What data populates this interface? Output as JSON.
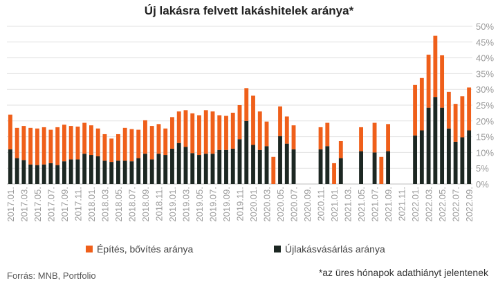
{
  "colors": {
    "epites": "#ef5f1a",
    "ujlakas": "#1c2722",
    "grid": "#e2e2e2",
    "axis_text": "#9a9a9a"
  },
  "chart_data": {
    "type": "bar",
    "stacked": true,
    "title": "Új lakásra felvett lakáshitelek aránya*",
    "y_ticks": [
      "0%",
      "5%",
      "10%",
      "15%",
      "20%",
      "25%",
      "30%",
      "35%",
      "40%",
      "45%",
      "50%"
    ],
    "ylim": [
      0,
      50
    ],
    "grid": true,
    "legend_position": "bottom",
    "categories": [
      "2017.01.",
      "2017.02.",
      "2017.03.",
      "2017.04.",
      "2017.05.",
      "2017.06.",
      "2017.07.",
      "2017.08.",
      "2017.09.",
      "2017.10.",
      "2017.11.",
      "2017.12.",
      "2018.01.",
      "2018.02.",
      "2018.03.",
      "2018.04.",
      "2018.05.",
      "2018.06.",
      "2018.07.",
      "2018.08.",
      "2018.09.",
      "2018.10.",
      "2018.11.",
      "2018.12.",
      "2019.01.",
      "2019.02.",
      "2019.03.",
      "2019.04.",
      "2019.05.",
      "2019.06.",
      "2019.07.",
      "2019.08.",
      "2019.09.",
      "2019.10.",
      "2019.11.",
      "2019.12.",
      "2020.01.",
      "2020.02.",
      "2020.03.",
      "2020.04.",
      "2020.05.",
      "2020.06.",
      "2020.07.",
      "2020.08.",
      "2020.09.",
      "2020.10.",
      "2020.11.",
      "2020.12.",
      "2021.01.",
      "2021.02.",
      "2021.03.",
      "2021.04.",
      "2021.05.",
      "2021.06.",
      "2021.07.",
      "2021.08.",
      "2021.09.",
      "2021.10.",
      "2021.11.",
      "2021.12.",
      "2022.01.",
      "2022.02.",
      "2022.03.",
      "2022.04.",
      "2022.05.",
      "2022.06.",
      "2022.07.",
      "2022.08.",
      "2022.09."
    ],
    "x_tick_labels": [
      "2017.01.",
      "2017.03.",
      "2017.05.",
      "2017.07.",
      "2017.09.",
      "2017.11.",
      "2018.01.",
      "2018.03.",
      "2018.05.",
      "2018.07.",
      "2018.09.",
      "2018.11.",
      "2019.01.",
      "2019.03.",
      "2019.05.",
      "2019.07.",
      "2019.09.",
      "2019.11.",
      "2020.01.",
      "2020.03.",
      "2020.05.",
      "2020.07.",
      "2020.09.",
      "2020.11.",
      "2021.01.",
      "2021.03.",
      "2021.05.",
      "2021.07.",
      "2021.09.",
      "2021.11.",
      "2022.01.",
      "2022.03.",
      "2022.05.",
      "2022.07.",
      "2022.09."
    ],
    "series": [
      {
        "name": "Újlakásvásárlás aránya",
        "color": "#1c2722",
        "values": [
          11,
          8.2,
          7.6,
          6.2,
          6.0,
          6.2,
          6.6,
          6.0,
          7.2,
          7.8,
          7.8,
          9.6,
          9.2,
          8.8,
          7.4,
          7.0,
          7.4,
          7.4,
          7.2,
          8.2,
          9.6,
          7.8,
          9.6,
          9.2,
          11.2,
          13.0,
          11.8,
          9.8,
          9.2,
          9.6,
          9.6,
          10.8,
          10.8,
          11.2,
          14.2,
          20.0,
          12.4,
          10.8,
          12.0,
          0,
          15.2,
          12.8,
          11.0,
          null,
          null,
          null,
          11.0,
          12.0,
          0,
          8.2,
          null,
          null,
          10.4,
          null,
          10.0,
          0,
          10.4,
          null,
          null,
          null,
          15.4,
          17.0,
          24.2,
          27.6,
          24.2,
          17.6,
          13.4,
          14.8,
          17.0
        ]
      },
      {
        "name": "Építés, bővítés aránya",
        "color": "#ef5f1a",
        "values": [
          11,
          9.6,
          10.8,
          11.6,
          11.6,
          11.8,
          10.6,
          12.0,
          11.6,
          10.6,
          10.4,
          9.8,
          9.4,
          8.8,
          8.4,
          7.4,
          8.4,
          10.4,
          10.2,
          9.0,
          10.6,
          10.6,
          9.4,
          8.4,
          10.0,
          10.0,
          11.6,
          12.6,
          12.6,
          13.8,
          13.4,
          11.0,
          10.8,
          11.4,
          10.8,
          10.4,
          15.6,
          12.2,
          7.8,
          8.6,
          9.4,
          8.6,
          7.6,
          null,
          null,
          null,
          7.0,
          7.4,
          6.6,
          5.4,
          null,
          null,
          7.6,
          null,
          9.4,
          8.6,
          8.6,
          null,
          null,
          null,
          16.0,
          16.6,
          16.8,
          19.4,
          16.6,
          11.6,
          12.0,
          13.0,
          13.6
        ]
      }
    ]
  },
  "legend": {
    "items": [
      {
        "label": "Építés, bővítés aránya",
        "color": "#ef5f1a"
      },
      {
        "label": "Újlakásvásárlás aránya",
        "color": "#1c2722"
      }
    ]
  },
  "source_note": "Forrás: MNB, Portfolio",
  "footnote": "*az üres hónapok adathiányt jelentenek"
}
